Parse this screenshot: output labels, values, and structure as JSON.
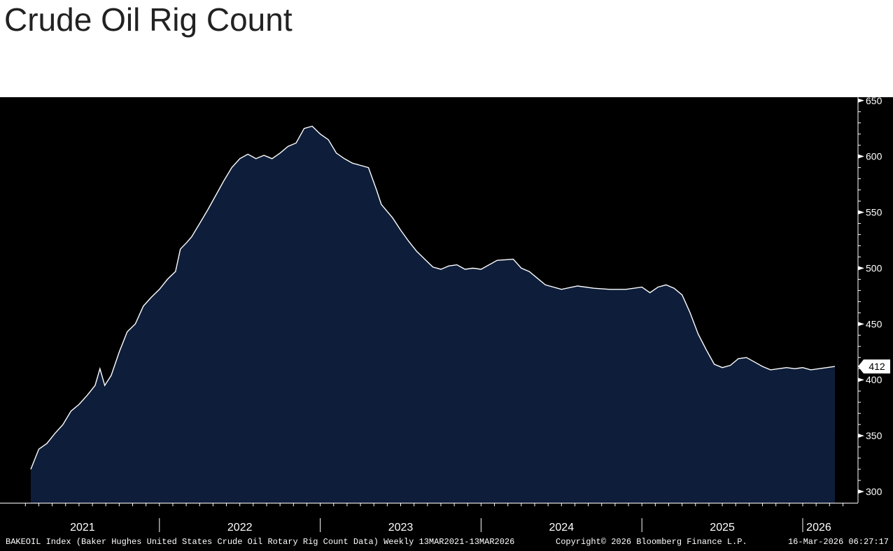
{
  "header": {
    "title": "Crude Oil Rig Count"
  },
  "footer": {
    "source": "BAKEOIL Index (Baker Hughes United States Crude Oil Rotary Rig Count Data) Weekly 13MAR2021-13MAR2026",
    "copyright": "Copyright© 2026 Bloomberg Finance L.P.",
    "timestamp": "16-Mar-2026 06:27:17"
  },
  "colors": {
    "background": "#000000",
    "area_fill": "#0e1e3a",
    "line": "#ffffff",
    "text": "#ffffff"
  },
  "chart_data": {
    "type": "area",
    "title": "Crude Oil Rig Count",
    "xlabel": "",
    "ylabel": "",
    "ylim": [
      290,
      653
    ],
    "y_ticks": [
      300,
      350,
      400,
      450,
      500,
      550,
      600,
      650
    ],
    "x_tick_labels": [
      "2021",
      "2022",
      "2023",
      "2024",
      "2025",
      "2026"
    ],
    "last_value": 412,
    "grid": false,
    "series": [
      {
        "values": [
          [
            2021.2,
            320
          ],
          [
            2021.25,
            338
          ],
          [
            2021.3,
            343
          ],
          [
            2021.35,
            352
          ],
          [
            2021.4,
            360
          ],
          [
            2021.45,
            372
          ],
          [
            2021.5,
            378
          ],
          [
            2021.55,
            386
          ],
          [
            2021.6,
            395
          ],
          [
            2021.63,
            410
          ],
          [
            2021.66,
            395
          ],
          [
            2021.7,
            404
          ],
          [
            2021.75,
            425
          ],
          [
            2021.8,
            443
          ],
          [
            2021.85,
            450
          ],
          [
            2021.9,
            466
          ],
          [
            2021.95,
            474
          ],
          [
            2022.0,
            481
          ],
          [
            2022.05,
            490
          ],
          [
            2022.1,
            497
          ],
          [
            2022.13,
            517
          ],
          [
            2022.17,
            523
          ],
          [
            2022.2,
            528
          ],
          [
            2022.25,
            540
          ],
          [
            2022.3,
            552
          ],
          [
            2022.35,
            565
          ],
          [
            2022.4,
            578
          ],
          [
            2022.45,
            590
          ],
          [
            2022.5,
            598
          ],
          [
            2022.55,
            602
          ],
          [
            2022.6,
            598
          ],
          [
            2022.65,
            601
          ],
          [
            2022.7,
            598
          ],
          [
            2022.75,
            603
          ],
          [
            2022.8,
            609
          ],
          [
            2022.85,
            612
          ],
          [
            2022.9,
            625
          ],
          [
            2022.95,
            627
          ],
          [
            2023.0,
            620
          ],
          [
            2023.05,
            615
          ],
          [
            2023.1,
            603
          ],
          [
            2023.15,
            598
          ],
          [
            2023.2,
            594
          ],
          [
            2023.25,
            592
          ],
          [
            2023.3,
            590
          ],
          [
            2023.35,
            570
          ],
          [
            2023.38,
            557
          ],
          [
            2023.45,
            545
          ],
          [
            2023.5,
            534
          ],
          [
            2023.55,
            524
          ],
          [
            2023.6,
            515
          ],
          [
            2023.65,
            508
          ],
          [
            2023.7,
            501
          ],
          [
            2023.75,
            499
          ],
          [
            2023.8,
            502
          ],
          [
            2023.85,
            503
          ],
          [
            2023.9,
            499
          ],
          [
            2023.95,
            500
          ],
          [
            2024.0,
            499
          ],
          [
            2024.1,
            507
          ],
          [
            2024.2,
            508
          ],
          [
            2024.25,
            500
          ],
          [
            2024.3,
            497
          ],
          [
            2024.4,
            485
          ],
          [
            2024.5,
            481
          ],
          [
            2024.6,
            484
          ],
          [
            2024.7,
            482
          ],
          [
            2024.8,
            481
          ],
          [
            2024.9,
            481
          ],
          [
            2025.0,
            483
          ],
          [
            2025.05,
            478
          ],
          [
            2025.1,
            483
          ],
          [
            2025.15,
            485
          ],
          [
            2025.2,
            482
          ],
          [
            2025.25,
            476
          ],
          [
            2025.3,
            460
          ],
          [
            2025.35,
            441
          ],
          [
            2025.4,
            427
          ],
          [
            2025.45,
            414
          ],
          [
            2025.5,
            411
          ],
          [
            2025.55,
            413
          ],
          [
            2025.6,
            419
          ],
          [
            2025.65,
            420
          ],
          [
            2025.7,
            416
          ],
          [
            2025.75,
            412
          ],
          [
            2025.8,
            409
          ],
          [
            2025.85,
            410
          ],
          [
            2025.9,
            411
          ],
          [
            2025.95,
            410
          ],
          [
            2026.0,
            411
          ],
          [
            2026.05,
            409
          ],
          [
            2026.1,
            410
          ],
          [
            2026.15,
            411
          ],
          [
            2026.2,
            412
          ]
        ]
      }
    ]
  }
}
